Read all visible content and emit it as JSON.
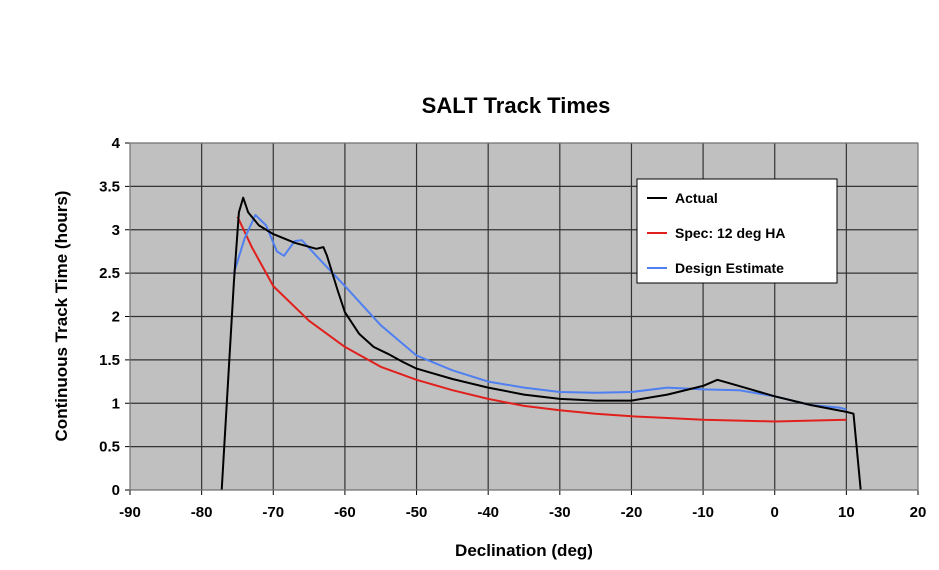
{
  "chart_data": {
    "type": "line",
    "title": "SALT Track Times",
    "xlabel": "Declination (deg)",
    "ylabel": "Continuous Track Time (hours)",
    "xlim": [
      -90,
      20
    ],
    "ylim": [
      0,
      4
    ],
    "xticks": [
      "-90",
      "-80",
      "-70",
      "-60",
      "-50",
      "-40",
      "-30",
      "-20",
      "-10",
      "0",
      "10",
      "20"
    ],
    "yticks": [
      "0",
      "0.5",
      "1",
      "1.5",
      "2",
      "2.5",
      "3",
      "3.5",
      "4"
    ],
    "grid": true,
    "legend_position": "top-right",
    "series": [
      {
        "name": "Actual",
        "color": "#000000",
        "points": [
          [
            -77.2,
            0
          ],
          [
            -75.5,
            2.4
          ],
          [
            -74.8,
            3.2
          ],
          [
            -74.2,
            3.37
          ],
          [
            -73.5,
            3.2
          ],
          [
            -72,
            3.05
          ],
          [
            -70,
            2.95
          ],
          [
            -67,
            2.85
          ],
          [
            -64,
            2.78
          ],
          [
            -63,
            2.8
          ],
          [
            -62.5,
            2.7
          ],
          [
            -61,
            2.3
          ],
          [
            -60,
            2.05
          ],
          [
            -58,
            1.8
          ],
          [
            -56,
            1.65
          ],
          [
            -54,
            1.57
          ],
          [
            -52,
            1.48
          ],
          [
            -50,
            1.4
          ],
          [
            -45,
            1.28
          ],
          [
            -40,
            1.18
          ],
          [
            -35,
            1.1
          ],
          [
            -30,
            1.05
          ],
          [
            -25,
            1.03
          ],
          [
            -20,
            1.03
          ],
          [
            -15,
            1.1
          ],
          [
            -10,
            1.2
          ],
          [
            -8,
            1.27
          ],
          [
            -5,
            1.2
          ],
          [
            0,
            1.08
          ],
          [
            5,
            0.98
          ],
          [
            10,
            0.9
          ],
          [
            11,
            0.88
          ],
          [
            12,
            0
          ]
        ]
      },
      {
        "name": "Spec: 12 deg HA",
        "color": "#e0201c",
        "points": [
          [
            -75,
            3.15
          ],
          [
            -73,
            2.8
          ],
          [
            -70,
            2.35
          ],
          [
            -65,
            1.95
          ],
          [
            -60,
            1.65
          ],
          [
            -55,
            1.42
          ],
          [
            -50,
            1.27
          ],
          [
            -45,
            1.15
          ],
          [
            -40,
            1.05
          ],
          [
            -35,
            0.97
          ],
          [
            -30,
            0.92
          ],
          [
            -25,
            0.88
          ],
          [
            -20,
            0.85
          ],
          [
            -15,
            0.83
          ],
          [
            -10,
            0.81
          ],
          [
            -5,
            0.8
          ],
          [
            0,
            0.79
          ],
          [
            5,
            0.8
          ],
          [
            10,
            0.81
          ]
        ]
      },
      {
        "name": "Design Estimate",
        "color": "#4f7ff0",
        "points": [
          [
            -75.5,
            2.5
          ],
          [
            -74,
            2.9
          ],
          [
            -72.5,
            3.17
          ],
          [
            -71,
            3.05
          ],
          [
            -69.5,
            2.75
          ],
          [
            -68.5,
            2.7
          ],
          [
            -67,
            2.87
          ],
          [
            -66,
            2.88
          ],
          [
            -64,
            2.7
          ],
          [
            -60,
            2.35
          ],
          [
            -55,
            1.9
          ],
          [
            -50,
            1.55
          ],
          [
            -45,
            1.38
          ],
          [
            -40,
            1.25
          ],
          [
            -35,
            1.18
          ],
          [
            -30,
            1.13
          ],
          [
            -25,
            1.12
          ],
          [
            -20,
            1.13
          ],
          [
            -15,
            1.18
          ],
          [
            -10,
            1.16
          ],
          [
            -5,
            1.15
          ],
          [
            0,
            1.08
          ],
          [
            5,
            0.98
          ],
          [
            9,
            0.95
          ],
          [
            10,
            0.93
          ]
        ]
      }
    ]
  }
}
